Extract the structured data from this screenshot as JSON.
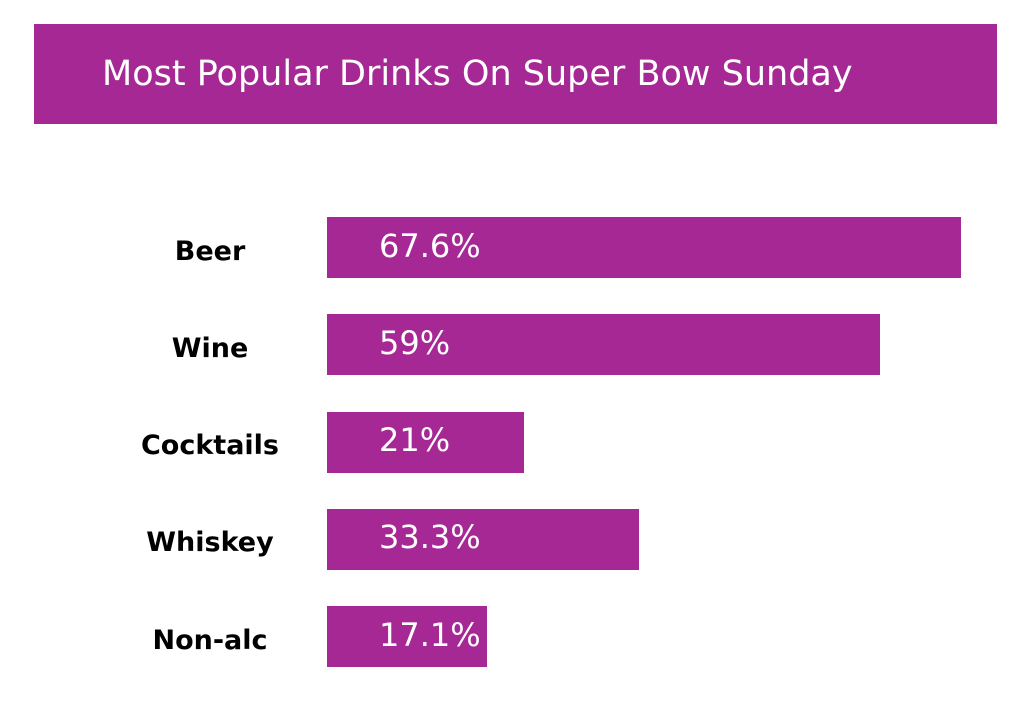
{
  "colors": {
    "accent": "#a62894",
    "background": "#ffffff",
    "title_text": "#ffffff",
    "label_text": "#000000"
  },
  "chart_data": {
    "type": "bar",
    "orientation": "horizontal",
    "title": "Most Popular Drinks On Super Bow Sunday",
    "categories": [
      "Beer",
      "Wine",
      "Cocktails",
      "Whiskey",
      "Non-alc"
    ],
    "values": [
      67.6,
      59,
      21,
      33.3,
      17.1
    ],
    "value_labels": [
      "67.6%",
      "59%",
      "21%",
      "33.3%",
      "17.1%"
    ],
    "unit": "%",
    "grid": false,
    "legend": "none"
  }
}
